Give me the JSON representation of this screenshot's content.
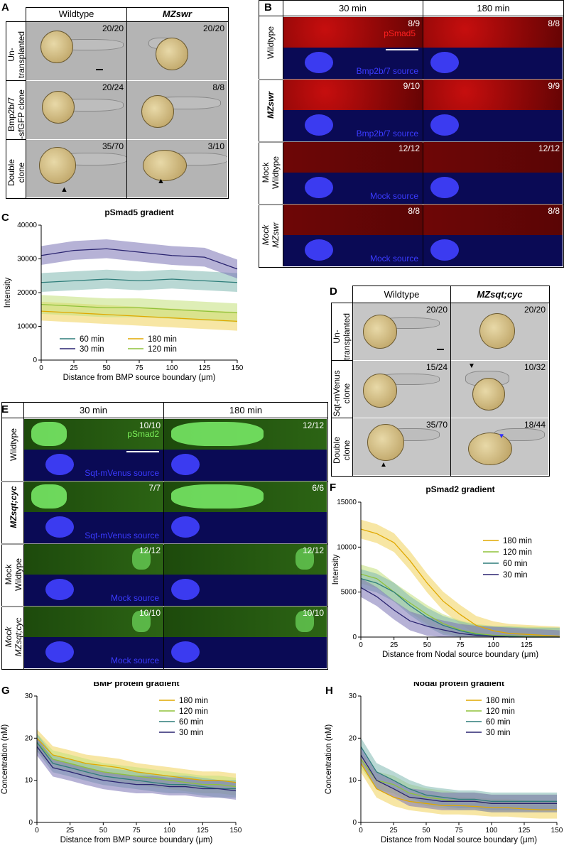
{
  "panels": {
    "A": {
      "letter": "A",
      "cols": [
        "Wildtype",
        "MZswr"
      ],
      "rows": [
        "Un-\ntransplanted",
        "Bmp2b/7\n-sfGFP clone",
        "Double\nclone"
      ],
      "counts": [
        [
          "20/20",
          "20/20"
        ],
        [
          "20/24",
          "8/8"
        ],
        [
          "35/70",
          "3/10"
        ]
      ]
    },
    "B": {
      "letter": "B",
      "cols": [
        "30 min",
        "180 min"
      ],
      "rows": [
        "Wildtype",
        "MZswr",
        "Mock\nWildtype",
        "Mock\nMZswr"
      ],
      "counts": [
        [
          "8/9",
          "8/8"
        ],
        [
          "9/10",
          "9/9"
        ],
        [
          "12/12",
          "12/12"
        ],
        [
          "8/8",
          "8/8"
        ]
      ],
      "stain_label": "pSmad5",
      "source_labels": [
        "Bmp2b/7 source",
        "Bmp2b/7 source",
        "Mock source",
        "Mock source"
      ]
    },
    "D": {
      "letter": "D",
      "cols": [
        "Wildtype",
        "MZsqt;cyc"
      ],
      "rows": [
        "Un-\ntransplanted",
        "Sqt-mVenus\nclone",
        "Double\nclone"
      ],
      "counts": [
        [
          "20/20",
          "20/20"
        ],
        [
          "15/24",
          "10/32"
        ],
        [
          "35/70",
          "18/44"
        ]
      ]
    },
    "E": {
      "letter": "E",
      "cols": [
        "30 min",
        "180 min"
      ],
      "rows": [
        "Wildtype",
        "MZsqt;cyc",
        "Mock\nWildtype",
        "Mock\nMZsqt;cyc"
      ],
      "counts": [
        [
          "10/10",
          "12/12"
        ],
        [
          "7/7",
          "6/6"
        ],
        [
          "12/12",
          "12/12"
        ],
        [
          "10/10",
          "10/10"
        ]
      ],
      "stain_label": "pSmad2",
      "source_labels": [
        "Sqt-mVenus source",
        "Sqt-mVenus source",
        "Mock source",
        "Mock source"
      ]
    }
  },
  "chart_data": [
    {
      "panel": "C",
      "type": "line",
      "title": "pSmad5 gradient",
      "xlabel": "Distance from BMP source boundary (μm)",
      "ylabel": "Intensity",
      "xlim": [
        0,
        150
      ],
      "ylim": [
        0,
        40000
      ],
      "xticks": [
        0,
        25,
        50,
        75,
        100,
        125,
        150
      ],
      "yticks": [
        0,
        10000,
        20000,
        30000,
        40000
      ],
      "x": [
        0,
        25,
        50,
        75,
        100,
        125,
        150
      ],
      "series": [
        {
          "name": "60 min",
          "color": "#2e7d7a",
          "band": "#7fb8b0",
          "values": [
            23000,
            23500,
            24000,
            23500,
            24000,
            23500,
            23000
          ]
        },
        {
          "name": "30 min",
          "color": "#2a2470",
          "band": "#7a72b5",
          "values": [
            31000,
            32500,
            33000,
            32000,
            31000,
            30500,
            27000
          ]
        },
        {
          "name": "180 min",
          "color": "#e0a800",
          "band": "#f0d25a",
          "values": [
            14500,
            14000,
            13500,
            13000,
            12500,
            12000,
            11500
          ]
        },
        {
          "name": "120 min",
          "color": "#8fc23a",
          "band": "#c3e07a",
          "values": [
            16500,
            16000,
            15500,
            15500,
            15000,
            14500,
            14000
          ]
        }
      ],
      "legend_order": [
        "60 min",
        "180 min",
        "30 min",
        "120 min"
      ]
    },
    {
      "panel": "F",
      "type": "line",
      "title": "pSmad2 gradient",
      "xlabel": "Distance from Nodal source boundary (μm)",
      "ylabel": "Intensity",
      "xlim": [
        0,
        150
      ],
      "ylim": [
        0,
        15000
      ],
      "xticks": [
        0,
        25,
        50,
        75,
        100,
        125
      ],
      "yticks": [
        0,
        5000,
        10000,
        15000
      ],
      "x": [
        0,
        12,
        25,
        37,
        50,
        62,
        75,
        87,
        100,
        112,
        125,
        137,
        150
      ],
      "series": [
        {
          "name": "180 min",
          "color": "#e0a800",
          "band": "#f0d25a",
          "values": [
            12000,
            11500,
            10500,
            8500,
            6000,
            4000,
            2500,
            1300,
            700,
            400,
            300,
            200,
            100
          ]
        },
        {
          "name": "120 min",
          "color": "#8fc23a",
          "band": "#c3e07a",
          "values": [
            7000,
            6500,
            5000,
            3800,
            2500,
            1500,
            800,
            400,
            200,
            150,
            100,
            50,
            0
          ]
        },
        {
          "name": "60 min",
          "color": "#2e7d7a",
          "band": "#7fb8b0",
          "values": [
            6500,
            6000,
            5000,
            3500,
            2200,
            1300,
            700,
            300,
            100,
            100,
            0,
            0,
            0
          ]
        },
        {
          "name": "30 min",
          "color": "#2a2470",
          "band": "#7a72b5",
          "values": [
            5500,
            4500,
            3000,
            1800,
            1200,
            800,
            400,
            200,
            100,
            0,
            -100,
            -200,
            -300
          ]
        }
      ],
      "legend_order": [
        "180 min",
        "120 min",
        "60 min",
        "30 min"
      ]
    },
    {
      "panel": "G",
      "type": "line",
      "title": "BMP protein gradient",
      "xlabel": "Distance from BMP source boundary (μm)",
      "ylabel": "Concentration (nM)",
      "xlim": [
        0,
        150
      ],
      "ylim": [
        0,
        30
      ],
      "xticks": [
        0,
        25,
        50,
        75,
        100,
        125,
        150
      ],
      "yticks": [
        0,
        10,
        20,
        30
      ],
      "x": [
        0,
        12,
        25,
        37,
        50,
        62,
        75,
        87,
        100,
        112,
        125,
        137,
        150
      ],
      "series": [
        {
          "name": "180 min",
          "color": "#e0a800",
          "band": "#f0d25a",
          "values": [
            20,
            16,
            15,
            14,
            13.5,
            13,
            12,
            11.5,
            11,
            10.5,
            10,
            10,
            9.5
          ]
        },
        {
          "name": "120 min",
          "color": "#8fc23a",
          "band": "#c3e07a",
          "values": [
            19,
            15,
            14,
            13,
            12,
            11.5,
            11,
            10.5,
            10,
            9.5,
            9,
            9,
            8.5
          ]
        },
        {
          "name": "60 min",
          "color": "#2e7d7a",
          "band": "#7fb8b0",
          "values": [
            19,
            14,
            13,
            12,
            11,
            10.5,
            10,
            9.5,
            9,
            9,
            8.5,
            8,
            8
          ]
        },
        {
          "name": "30 min",
          "color": "#2a2470",
          "band": "#7a72b5",
          "values": [
            18,
            13,
            12,
            11,
            10,
            9.5,
            9,
            9,
            8.5,
            8.5,
            8,
            8,
            7.5
          ]
        }
      ],
      "legend_order": [
        "180 min",
        "120 min",
        "60 min",
        "30 min"
      ]
    },
    {
      "panel": "H",
      "type": "line",
      "title": "Nodal protein gradient",
      "xlabel": "Distance from Nodal source boundary (μm)",
      "ylabel": "Concentration (nM)",
      "xlim": [
        0,
        150
      ],
      "ylim": [
        0,
        30
      ],
      "xticks": [
        0,
        25,
        50,
        75,
        100,
        125,
        150
      ],
      "yticks": [
        0,
        10,
        20,
        30
      ],
      "x": [
        0,
        12,
        25,
        37,
        50,
        62,
        75,
        87,
        100,
        112,
        125,
        137,
        150
      ],
      "series": [
        {
          "name": "180 min",
          "color": "#e0a800",
          "band": "#f0d25a",
          "values": [
            14,
            8,
            6,
            5,
            4.5,
            4,
            4,
            3.8,
            3.5,
            3.5,
            3.2,
            3,
            3
          ]
        },
        {
          "name": "120 min",
          "color": "#8fc23a",
          "band": "#c3e07a",
          "values": [
            15,
            10,
            9,
            7,
            6,
            5.5,
            5,
            5,
            4.5,
            4.5,
            4.5,
            4.5,
            4.5
          ]
        },
        {
          "name": "60 min",
          "color": "#2e7d7a",
          "band": "#7fb8b0",
          "values": [
            18,
            12,
            10,
            8,
            6.5,
            6,
            5.5,
            5.5,
            5,
            5,
            5,
            5,
            5
          ]
        },
        {
          "name": "30 min",
          "color": "#2a2470",
          "band": "#7a72b5",
          "values": [
            16,
            10,
            8,
            6,
            5.5,
            5,
            5,
            5,
            4.5,
            4.5,
            4.5,
            4.5,
            4.5
          ]
        }
      ],
      "legend_order": [
        "180 min",
        "120 min",
        "60 min",
        "30 min"
      ]
    }
  ]
}
